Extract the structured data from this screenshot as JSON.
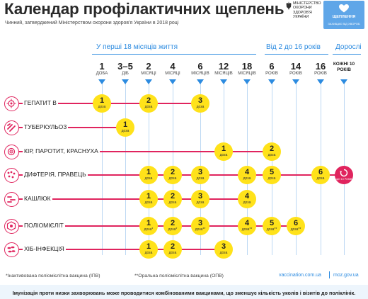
{
  "header": {
    "title": "Календар профілактичних щеплень",
    "subtitle": "Чинний, затверджений Міністерством охорони здоров'я України в 2018 році",
    "mz_logo_text": "Міністерство охорони здоров'я України",
    "sh_logo_title": "ЩЕПЛЕННЯ",
    "sh_logo_sub": "ЗАХИЩАЄ ВІД ХВОРОБ"
  },
  "groups": [
    {
      "label": "У перші 18 місяців життя"
    },
    {
      "label": "Від 2 до 16 років"
    },
    {
      "label": "Дорослі"
    }
  ],
  "ages": [
    {
      "num": "1",
      "unit": "доба"
    },
    {
      "num": "3–5",
      "unit": "діб"
    },
    {
      "num": "2",
      "unit": "місяці"
    },
    {
      "num": "4",
      "unit": "місяці"
    },
    {
      "num": "6",
      "unit": "місяців"
    },
    {
      "num": "12",
      "unit": "місяців"
    },
    {
      "num": "18",
      "unit": "місяців"
    },
    {
      "num": "6",
      "unit": "років"
    },
    {
      "num": "14",
      "unit": "років"
    },
    {
      "num": "16",
      "unit": "років"
    }
  ],
  "adult_age": "Кожні 10 років",
  "dose_unit": "доза",
  "adult_badge_text": "ЩО 10 РОКІВ",
  "rows": [
    {
      "label": "Гепатит В",
      "icon": "hepatitis-virus-icon",
      "doses": [
        {
          "col": 0,
          "n": "1"
        },
        {
          "col": 2,
          "n": "2"
        },
        {
          "col": 4,
          "n": "3"
        }
      ]
    },
    {
      "label": "Туберкульоз",
      "icon": "tuberculosis-bacteria-icon",
      "doses": [
        {
          "col": 1,
          "n": "1"
        }
      ]
    },
    {
      "label": "Кір, паротит, краснуха",
      "icon": "measles-virus-icon",
      "doses": [
        {
          "col": 5,
          "n": "1"
        },
        {
          "col": 7,
          "n": "2"
        }
      ]
    },
    {
      "label": "Дифтерія, правець",
      "icon": "diphtheria-bacteria-icon",
      "doses": [
        {
          "col": 2,
          "n": "1"
        },
        {
          "col": 3,
          "n": "2"
        },
        {
          "col": 4,
          "n": "3"
        },
        {
          "col": 6,
          "n": "4"
        },
        {
          "col": 7,
          "n": "5"
        },
        {
          "col": 9,
          "n": "6"
        }
      ],
      "adult": true
    },
    {
      "label": "Кашлюк",
      "icon": "pertussis-bacteria-icon",
      "doses": [
        {
          "col": 2,
          "n": "1"
        },
        {
          "col": 3,
          "n": "2"
        },
        {
          "col": 4,
          "n": "3"
        },
        {
          "col": 6,
          "n": "4"
        }
      ]
    },
    {
      "label": "Поліомієліт",
      "icon": "polio-virus-icon",
      "doses": [
        {
          "col": 2,
          "n": "1",
          "mark": "*"
        },
        {
          "col": 3,
          "n": "2",
          "mark": "*"
        },
        {
          "col": 4,
          "n": "3",
          "mark": "**"
        },
        {
          "col": 6,
          "n": "4",
          "mark": "**"
        },
        {
          "col": 7,
          "n": "5",
          "mark": "**"
        },
        {
          "col": 8,
          "n": "6",
          "mark": "**"
        }
      ]
    },
    {
      "label": "ХІБ-інфекція",
      "icon": "hib-bacteria-icon",
      "doses": [
        {
          "col": 2,
          "n": "1"
        },
        {
          "col": 3,
          "n": "2"
        },
        {
          "col": 5,
          "n": "3"
        }
      ]
    }
  ],
  "footer": {
    "note1": "*Інактивована поліомієлітна вакцина (ІПВ)",
    "note2": "**Оральна поліомієлітна вакцина (ОПВ)",
    "site1": "vaccination.com.ua",
    "site2": "moz.gov.ua",
    "bottom": "Імунізація проти низки захворювань може проводитися комбінованими вакцинами, що зменшує кількість уколів і візитів до поліклінік."
  },
  "colors": {
    "accent": "#2c8be0",
    "line": "#e0245e",
    "dose": "#ffe21a"
  }
}
